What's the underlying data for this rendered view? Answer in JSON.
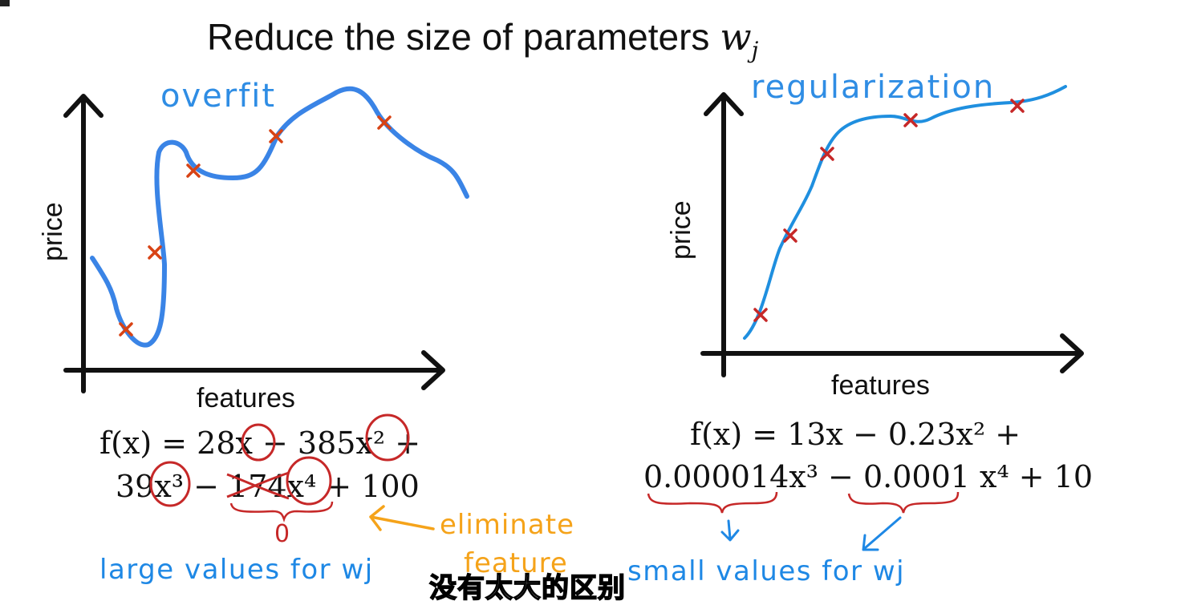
{
  "title": {
    "main": "Reduce the size of parameters ",
    "var": "w",
    "sub": "j"
  },
  "colors": {
    "curve": "#3a84e6",
    "curve_right": "#1f8fdf",
    "marker": "#d84315",
    "annotation_red": "#c62828",
    "annotation_orange": "#f5a31a",
    "annotation_blue": "#1e88e5",
    "axis": "#111111"
  },
  "left_panel": {
    "label": "overfit",
    "y_axis_label": "price",
    "x_axis_label": "features",
    "equation_line1": "f(x) = 28x − 385x² +",
    "equation_line2_a": "39x³ − ",
    "equation_line2_struck": "174",
    "equation_line2_b": "x⁴ + 100",
    "zero_note": "0",
    "eliminate_note_1": "eliminate",
    "eliminate_note_2": "feature",
    "bottom_note": "large values for wj"
  },
  "right_panel": {
    "label": "regularization",
    "y_axis_label": "price",
    "x_axis_label": "features",
    "equation_line1": "f(x) = 13x − 0.23x² +",
    "equation_line2": "0.000014x³ − 0.0001 x⁴ + 10",
    "bottom_note": "small values for wj"
  },
  "subtitle": "没有太大的区别"
}
